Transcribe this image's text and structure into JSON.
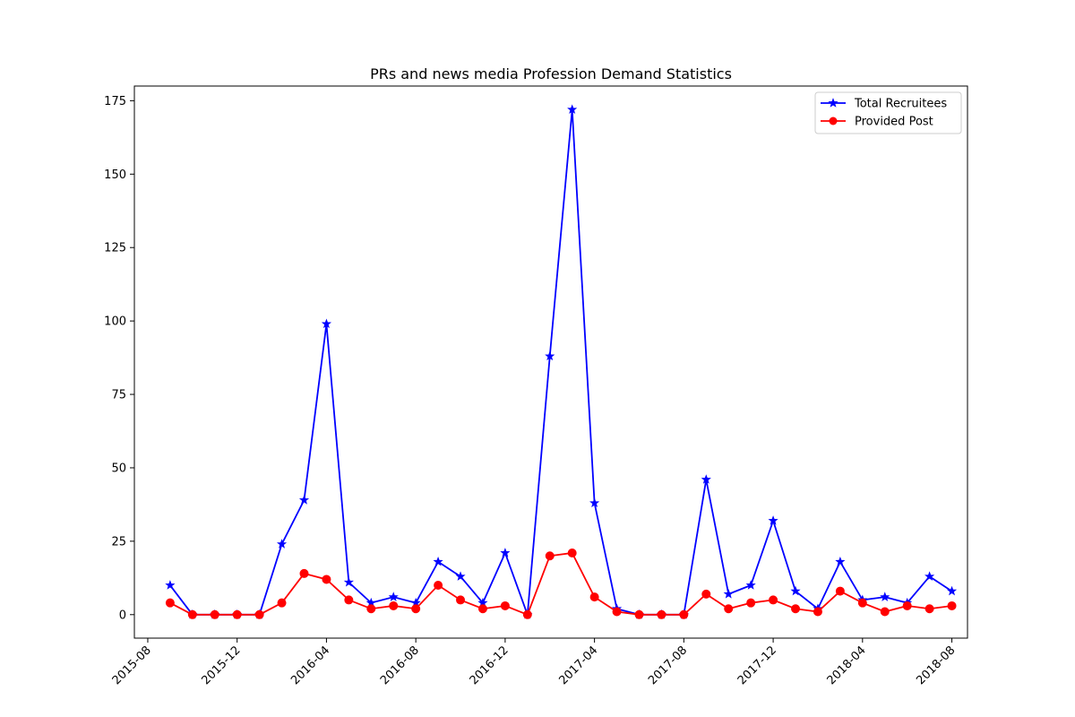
{
  "chart_data": {
    "type": "line",
    "title": "PRs and news media Profession Demand Statistics",
    "xlabel": "",
    "ylabel": "",
    "x": [
      "2015-09",
      "2015-10",
      "2015-11",
      "2015-12",
      "2016-01",
      "2016-02",
      "2016-03",
      "2016-04",
      "2016-05",
      "2016-06",
      "2016-07",
      "2016-08",
      "2016-09",
      "2016-10",
      "2016-11",
      "2016-12",
      "2017-01",
      "2017-02",
      "2017-03",
      "2017-04",
      "2017-05",
      "2017-06",
      "2017-07",
      "2017-08",
      "2017-09",
      "2017-10",
      "2017-11",
      "2017-12",
      "2018-01",
      "2018-02",
      "2018-03",
      "2018-04",
      "2018-05",
      "2018-06",
      "2018-07",
      "2018-08"
    ],
    "x_tick_labels": [
      "2015-08",
      "2015-12",
      "2016-04",
      "2016-08",
      "2016-12",
      "2017-04",
      "2017-08",
      "2017-12",
      "2018-04",
      "2018-08"
    ],
    "y_tick_labels": [
      "0",
      "25",
      "50",
      "75",
      "100",
      "125",
      "150",
      "175"
    ],
    "ylim": [
      -8,
      180
    ],
    "grid": false,
    "legend_position": "top-right",
    "series": [
      {
        "name": "Total Recruitees",
        "color": "#0000ff",
        "marker": "star",
        "values": [
          10,
          0,
          0,
          0,
          0,
          24,
          39,
          99,
          11,
          4,
          6,
          4,
          18,
          13,
          4,
          21,
          0,
          88,
          172,
          38,
          2,
          0,
          0,
          0,
          46,
          7,
          10,
          32,
          8,
          2,
          18,
          5,
          6,
          4,
          13,
          8
        ]
      },
      {
        "name": "Provided Post",
        "color": "#ff0000",
        "marker": "circle",
        "values": [
          4,
          0,
          0,
          0,
          0,
          4,
          14,
          12,
          5,
          2,
          3,
          2,
          10,
          5,
          2,
          3,
          0,
          20,
          21,
          6,
          1,
          0,
          0,
          0,
          7,
          2,
          4,
          5,
          2,
          1,
          8,
          4,
          1,
          3,
          2,
          3
        ]
      }
    ]
  }
}
